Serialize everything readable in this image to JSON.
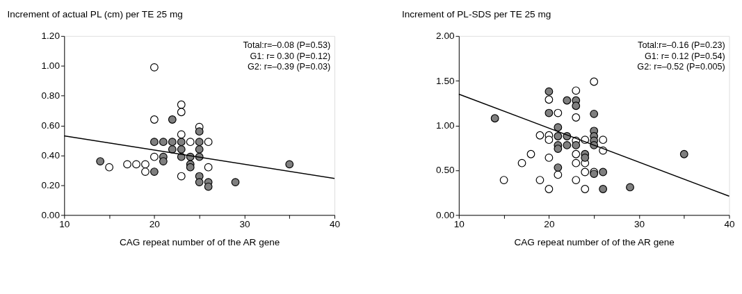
{
  "chart_data": [
    {
      "type": "scatter",
      "title": "Increment of actual PL (cm) per TE 25 mg",
      "xlabel": "CAG repeat number of  of the AR gene",
      "grid": false,
      "xlim": [
        10,
        40
      ],
      "xticks": [
        10,
        {
          "value": 15,
          "label": null
        },
        20,
        {
          "value": 25,
          "label": null
        },
        30,
        {
          "value": 35,
          "label": null
        },
        40
      ],
      "ylim": [
        0,
        1.2
      ],
      "yticks": [
        {
          "value": 0,
          "label": "0.00"
        },
        {
          "value": 0.2,
          "label": "0.20"
        },
        {
          "value": 0.4,
          "label": "0.40"
        },
        {
          "value": 0.6,
          "label": "0.60"
        },
        {
          "value": 0.8,
          "label": "0.80"
        },
        {
          "value": 1.0,
          "label": "1.00"
        },
        {
          "value": 1.2,
          "label": "1.20"
        }
      ],
      "annotations": [
        "Total:r=–0.08 (P=0.53)",
        "G1: r=  0.30 (P=0.12)",
        "G2: r=–0.39 (P=0.03)"
      ],
      "series": [
        {
          "type": "scatter",
          "marker": "circle",
          "color": "#ffffff",
          "x": [
            20,
            23,
            23,
            20,
            25,
            23,
            24,
            26,
            20,
            15,
            17,
            18,
            19,
            19,
            26,
            23
          ],
          "values": [
            0.99,
            0.74,
            0.69,
            0.64,
            0.59,
            0.54,
            0.49,
            0.49,
            0.39,
            0.32,
            0.34,
            0.34,
            0.34,
            0.29,
            0.32,
            0.26
          ]
        },
        {
          "type": "scatter",
          "marker": "circle",
          "color": "#7f7f7f",
          "x": [
            14,
            20,
            20,
            21,
            22,
            22,
            22,
            23,
            23,
            23,
            21,
            21,
            24,
            24,
            24,
            25,
            25,
            25,
            25,
            25,
            25,
            26,
            26,
            29,
            35
          ],
          "values": [
            0.36,
            0.29,
            0.49,
            0.49,
            0.64,
            0.49,
            0.44,
            0.49,
            0.44,
            0.39,
            0.39,
            0.36,
            0.39,
            0.34,
            0.32,
            0.56,
            0.49,
            0.44,
            0.39,
            0.26,
            0.22,
            0.22,
            0.19,
            0.22,
            0.34
          ]
        },
        {
          "type": "line",
          "color": "#000000",
          "x": [
            10,
            40
          ],
          "values": [
            0.53,
            0.245
          ]
        }
      ]
    },
    {
      "type": "scatter",
      "title": "Increment of PL-SDS per TE 25 mg",
      "xlabel": "CAG repeat number of  of the AR gene",
      "grid": false,
      "xlim": [
        10,
        40
      ],
      "xticks": [
        10,
        {
          "value": 15,
          "label": null
        },
        20,
        {
          "value": 25,
          "label": null
        },
        30,
        {
          "value": 35,
          "label": null
        },
        40
      ],
      "ylim": [
        0,
        2.0
      ],
      "yticks": [
        {
          "value": 0,
          "label": "0.00"
        },
        {
          "value": 0.5,
          "label": "0.50"
        },
        {
          "value": 1.0,
          "label": "1.00"
        },
        {
          "value": 1.5,
          "label": "1.50"
        },
        {
          "value": 2.0,
          "label": "2.00"
        }
      ],
      "annotations": [
        "Total:r=–0.16 (P=0.23)",
        "G1: r=  0.12 (P=0.54)",
        "G2: r=–0.52 (P=0.005)"
      ],
      "series": [
        {
          "type": "scatter",
          "marker": "circle",
          "color": "#ffffff",
          "x": [
            25,
            23,
            20,
            21,
            23,
            19,
            20,
            20,
            23,
            24,
            26,
            26,
            18,
            23,
            20,
            17,
            23,
            24,
            24,
            25,
            21,
            15,
            19,
            23,
            20,
            24
          ],
          "values": [
            1.49,
            1.39,
            1.29,
            1.14,
            1.09,
            0.89,
            0.89,
            0.84,
            0.83,
            0.84,
            0.84,
            0.72,
            0.68,
            0.68,
            0.64,
            0.58,
            0.58,
            0.58,
            0.48,
            0.48,
            0.45,
            0.39,
            0.39,
            0.39,
            0.29,
            0.29
          ]
        },
        {
          "type": "scatter",
          "marker": "circle",
          "color": "#7f7f7f",
          "x": [
            14,
            20,
            20,
            22,
            23,
            23,
            25,
            21,
            21,
            21,
            21,
            22,
            22,
            23,
            24,
            24,
            25,
            25,
            25,
            25,
            25,
            26,
            21,
            26,
            29,
            35
          ],
          "values": [
            1.08,
            1.38,
            1.14,
            1.28,
            1.28,
            1.22,
            1.13,
            0.98,
            0.88,
            0.78,
            0.74,
            0.88,
            0.78,
            0.78,
            0.68,
            0.64,
            0.94,
            0.88,
            0.83,
            0.78,
            0.46,
            0.48,
            0.53,
            0.29,
            0.31,
            0.68
          ]
        },
        {
          "type": "line",
          "color": "#000000",
          "x": [
            10,
            40
          ],
          "values": [
            1.35,
            0.21
          ]
        }
      ]
    }
  ]
}
